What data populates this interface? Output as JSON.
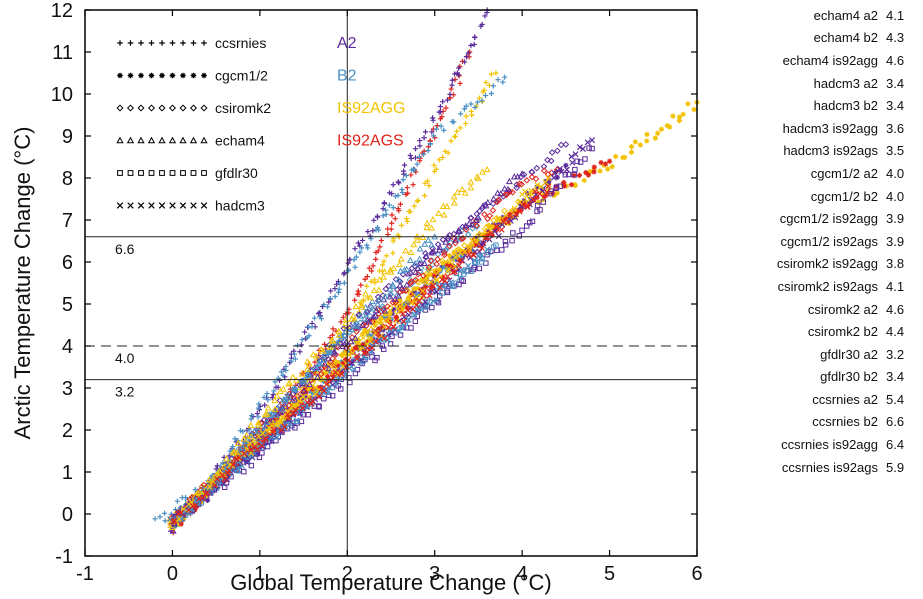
{
  "chart_data": {
    "type": "scatter",
    "xlabel": "Global Temperature Change (°C)",
    "ylabel": "Arctic Temperature Change (°C)",
    "xlim": [
      -1,
      6
    ],
    "ylim": [
      -1,
      12
    ],
    "xticks": [
      "-1",
      "0",
      "1",
      "2",
      "3",
      "4",
      "5",
      "6"
    ],
    "yticks": [
      "-1",
      "0",
      "1",
      "2",
      "3",
      "4",
      "5",
      "6",
      "7",
      "8",
      "9",
      "10",
      "11",
      "12"
    ],
    "grid": false,
    "reference_lines": [
      {
        "orientation": "horizontal",
        "y": 6.6,
        "label": "6.6",
        "style": "solid"
      },
      {
        "orientation": "horizontal",
        "y": 4.0,
        "label": "4.0",
        "style": "dashed"
      },
      {
        "orientation": "horizontal",
        "y": 3.2,
        "label": "3.2",
        "style": "solid"
      },
      {
        "orientation": "vertical",
        "x": 2.0,
        "label": "",
        "style": "solid"
      }
    ],
    "marker_legend": [
      {
        "model": "ccsrnies",
        "marker": "+"
      },
      {
        "model": "cgcm1/2",
        "marker": "*"
      },
      {
        "model": "csiromk2",
        "marker": "◇"
      },
      {
        "model": "echam4",
        "marker": "△"
      },
      {
        "model": "gfdlr30",
        "marker": "□"
      },
      {
        "model": "hadcm3",
        "marker": "×"
      }
    ],
    "scenario_legend": [
      {
        "name": "A2",
        "color": "#5b2c9c"
      },
      {
        "name": "B2",
        "color": "#4a8fc4"
      },
      {
        "name": "IS92AGG",
        "color": "#f2c200"
      },
      {
        "name": "IS92AGS",
        "color": "#e0231c"
      }
    ],
    "series": [
      {
        "name": "ccsrnies is92ags",
        "scenario": "IS92AGS",
        "marker": "+",
        "points": [
          [
            0.0,
            -0.4
          ],
          [
            1.0,
            1.9
          ],
          [
            2.0,
            4.7
          ],
          [
            2.8,
            8.2
          ],
          [
            3.4,
            11.0
          ]
        ]
      },
      {
        "name": "ccsrnies is92agg",
        "scenario": "IS92AGG",
        "marker": "+",
        "points": [
          [
            0.0,
            -0.3
          ],
          [
            1.0,
            1.8
          ],
          [
            2.0,
            4.4
          ],
          [
            3.0,
            8.2
          ],
          [
            3.7,
            10.5
          ]
        ]
      },
      {
        "name": "ccsrnies a2",
        "scenario": "A2",
        "marker": "+",
        "points": [
          [
            0.0,
            -0.3
          ],
          [
            1.0,
            2.4
          ],
          [
            2.0,
            5.9
          ],
          [
            3.0,
            9.4
          ],
          [
            3.6,
            12.0
          ]
        ]
      },
      {
        "name": "ccsrnies b2",
        "scenario": "B2",
        "marker": "+",
        "points": [
          [
            -0.2,
            -0.2
          ],
          [
            0.5,
            0.9
          ],
          [
            1.2,
            3.2
          ],
          [
            2.0,
            5.7
          ],
          [
            3.0,
            9.0
          ],
          [
            3.8,
            10.4
          ]
        ]
      },
      {
        "name": "cgcm1/2 a2",
        "scenario": "A2",
        "marker": "*",
        "points": [
          [
            0.0,
            -0.3
          ],
          [
            1.0,
            1.6
          ],
          [
            2.0,
            3.6
          ],
          [
            3.0,
            5.7
          ],
          [
            4.0,
            7.4
          ],
          [
            4.5,
            8.3
          ]
        ]
      },
      {
        "name": "cgcm1/2 b2",
        "scenario": "B2",
        "marker": "*",
        "points": [
          [
            0.0,
            -0.3
          ],
          [
            1.0,
            1.7
          ],
          [
            2.0,
            3.8
          ],
          [
            3.0,
            5.6
          ],
          [
            3.5,
            6.5
          ]
        ]
      },
      {
        "name": "cgcm1/2 is92agg",
        "scenario": "IS92AGG",
        "marker": "*",
        "points": [
          [
            0.0,
            -0.3
          ],
          [
            1.0,
            1.8
          ],
          [
            2.0,
            3.9
          ],
          [
            3.0,
            5.8
          ],
          [
            4.0,
            7.3
          ],
          [
            5.0,
            8.3
          ],
          [
            6.0,
            9.8
          ]
        ]
      },
      {
        "name": "cgcm1/2 is92ags",
        "scenario": "IS92AGS",
        "marker": "*",
        "points": [
          [
            0.0,
            -0.3
          ],
          [
            1.0,
            1.7
          ],
          [
            2.0,
            3.7
          ],
          [
            3.0,
            5.6
          ],
          [
            4.0,
            7.3
          ],
          [
            5.0,
            8.4
          ]
        ]
      },
      {
        "name": "csiromk2 a2",
        "scenario": "A2",
        "marker": "◇",
        "points": [
          [
            0.0,
            -0.2
          ],
          [
            1.0,
            2.0
          ],
          [
            2.0,
            4.4
          ],
          [
            3.0,
            6.3
          ],
          [
            4.0,
            8.0
          ],
          [
            4.5,
            8.8
          ]
        ]
      },
      {
        "name": "csiromk2 b2",
        "scenario": "B2",
        "marker": "◇",
        "points": [
          [
            0.0,
            -0.2
          ],
          [
            1.0,
            2.0
          ],
          [
            2.0,
            4.3
          ],
          [
            3.0,
            6.0
          ],
          [
            3.5,
            7.0
          ]
        ]
      },
      {
        "name": "csiromk2 is92agg",
        "scenario": "IS92AGG",
        "marker": "◇",
        "points": [
          [
            0.0,
            -0.2
          ],
          [
            1.0,
            1.9
          ],
          [
            2.0,
            3.9
          ],
          [
            3.0,
            5.8
          ],
          [
            4.0,
            7.4
          ],
          [
            4.3,
            7.8
          ]
        ]
      },
      {
        "name": "csiromk2 is92ags",
        "scenario": "IS92AGS",
        "marker": "◇",
        "points": [
          [
            0.0,
            -0.2
          ],
          [
            1.0,
            2.0
          ],
          [
            2.0,
            4.1
          ],
          [
            3.0,
            6.0
          ],
          [
            4.0,
            7.9
          ],
          [
            4.4,
            8.2
          ]
        ]
      },
      {
        "name": "echam4 a2",
        "scenario": "A2",
        "marker": "△",
        "points": [
          [
            0.0,
            -0.3
          ],
          [
            1.0,
            1.9
          ],
          [
            2.0,
            4.1
          ],
          [
            3.0,
            6.2
          ],
          [
            4.0,
            8.1
          ]
        ]
      },
      {
        "name": "echam4 b2",
        "scenario": "B2",
        "marker": "△",
        "points": [
          [
            0.0,
            -0.3
          ],
          [
            1.0,
            2.0
          ],
          [
            2.0,
            4.3
          ],
          [
            3.0,
            6.6
          ]
        ]
      },
      {
        "name": "echam4 is92agg",
        "scenario": "IS92AGG",
        "marker": "△",
        "points": [
          [
            0.0,
            -0.3
          ],
          [
            1.0,
            2.2
          ],
          [
            2.0,
            4.6
          ],
          [
            3.0,
            7.0
          ],
          [
            3.6,
            8.2
          ]
        ]
      },
      {
        "name": "gfdlr30 a2",
        "scenario": "A2",
        "marker": "□",
        "points": [
          [
            0.0,
            -0.2
          ],
          [
            1.0,
            1.4
          ],
          [
            2.0,
            3.2
          ],
          [
            3.0,
            5.0
          ],
          [
            4.0,
            6.8
          ],
          [
            4.8,
            8.7
          ]
        ]
      },
      {
        "name": "gfdlr30 b2",
        "scenario": "B2",
        "marker": "□",
        "points": [
          [
            0.0,
            -0.2
          ],
          [
            1.0,
            1.6
          ],
          [
            2.0,
            3.4
          ],
          [
            3.0,
            5.2
          ],
          [
            3.7,
            6.4
          ]
        ]
      },
      {
        "name": "hadcm3 a2",
        "scenario": "A2",
        "marker": "×",
        "points": [
          [
            0.0,
            -0.2
          ],
          [
            1.0,
            1.6
          ],
          [
            2.0,
            3.4
          ],
          [
            3.0,
            5.3
          ],
          [
            4.0,
            7.3
          ],
          [
            4.8,
            8.9
          ]
        ]
      },
      {
        "name": "hadcm3 b2",
        "scenario": "B2",
        "marker": "×",
        "points": [
          [
            0.0,
            -0.2
          ],
          [
            1.0,
            1.6
          ],
          [
            2.0,
            3.4
          ],
          [
            3.0,
            5.2
          ],
          [
            3.6,
            6.3
          ]
        ]
      },
      {
        "name": "hadcm3 is92agg",
        "scenario": "IS92AGG",
        "marker": "×",
        "points": [
          [
            0.0,
            -0.2
          ],
          [
            1.0,
            1.8
          ],
          [
            2.0,
            3.6
          ],
          [
            3.0,
            5.6
          ],
          [
            4.0,
            7.5
          ],
          [
            4.3,
            8.0
          ]
        ]
      },
      {
        "name": "hadcm3 is92ags",
        "scenario": "IS92AGS",
        "marker": "×",
        "points": [
          [
            0.0,
            -0.2
          ],
          [
            1.0,
            1.7
          ],
          [
            2.0,
            3.5
          ],
          [
            3.0,
            5.4
          ],
          [
            4.0,
            7.3
          ],
          [
            4.3,
            7.8
          ]
        ]
      }
    ]
  },
  "side_table": {
    "rows": [
      {
        "name": "echam4 a2",
        "value": "4.1"
      },
      {
        "name": "echam4 b2",
        "value": "4.3"
      },
      {
        "name": "echam4 is92agg",
        "value": "4.6"
      },
      {
        "name": "hadcm3 a2",
        "value": "3.4"
      },
      {
        "name": "hadcm3 b2",
        "value": "3.4"
      },
      {
        "name": "hadcm3 is92agg",
        "value": "3.6"
      },
      {
        "name": "hadcm3 is92ags",
        "value": "3.5"
      },
      {
        "name": "cgcm1/2 a2",
        "value": "4.0"
      },
      {
        "name": "cgcm1/2 b2",
        "value": "4.0"
      },
      {
        "name": "cgcm1/2 is92agg",
        "value": "3.9"
      },
      {
        "name": "cgcm1/2 is92ags",
        "value": "3.9"
      },
      {
        "name": "csiromk2 is92agg",
        "value": "3.8"
      },
      {
        "name": "csiromk2 is92ags",
        "value": "4.1"
      },
      {
        "name": "csiromk2 a2",
        "value": "4.6"
      },
      {
        "name": "csiromk2 b2",
        "value": "4.4"
      },
      {
        "name": "gfdlr30 a2",
        "value": "3.2"
      },
      {
        "name": "gfdlr30 b2",
        "value": "3.4"
      },
      {
        "name": "ccsrnies a2",
        "value": "5.4"
      },
      {
        "name": "ccsrnies b2",
        "value": "6.6"
      },
      {
        "name": "ccsrnies is92agg",
        "value": "6.4"
      },
      {
        "name": "ccsrnies is92ags",
        "value": "5.9"
      }
    ]
  }
}
